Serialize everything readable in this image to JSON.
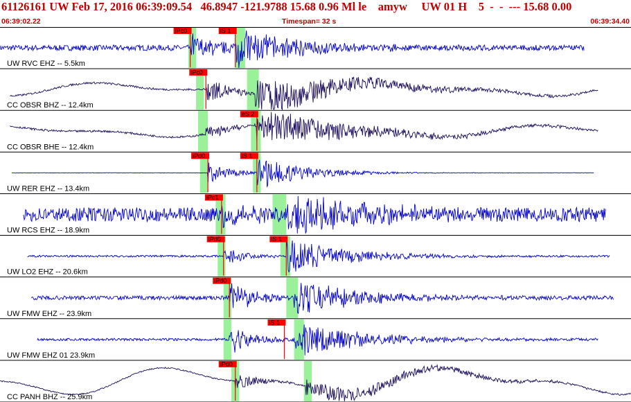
{
  "header": {
    "title": "61126161 UW Feb 17, 2016 06:39:09.54   46.8947 -121.9788 15.68 0.96 Ml le    amyw     UW 01 H    5  -  -  --- 15.68 0.00",
    "start_time": "06:39:02.22",
    "timespan": "Timespan=  32 s",
    "end_time": "06:39:34.40"
  },
  "chart_data": {
    "type": "line",
    "title": "61126161 UW Feb 17, 2016 06:39:09.54   46.8947 -121.9788 15.68 0.96 Ml le    amyw     UW 01 H    5  -  -  --- 15.68 0.00",
    "x_range_s": [
      0,
      32.18
    ],
    "colors": {
      "trace_blue": "#0000cc",
      "trace_dark": "#1a0a5a",
      "pick_red": "#ff0000",
      "window_green": "#88ee88"
    },
    "traces": [
      {
        "label": "UW RVC EHZ -- 5.5km",
        "color": "#0000cc",
        "start": 0.0,
        "end": 29.8,
        "noise": 0.14,
        "lp": 0,
        "onset": 9.7,
        "s": 12.0,
        "ampP": 0.8,
        "ampS": 0.95,
        "decay": 3.0,
        "windows": [
          [
            9.6,
            10.0
          ],
          [
            12.0,
            12.5
          ]
        ],
        "picks": [
          {
            "label": "iPc0",
            "t": 9.7
          },
          {
            "label": "iS 1",
            "t": 12.0
          }
        ]
      },
      {
        "label": "CC OBSR BHZ -- 12.4km",
        "color": "#1a0a5a",
        "start": 0.5,
        "end": 30.5,
        "noise": 0.05,
        "lp": 0.45,
        "onset": 10.5,
        "s": 13.0,
        "ampP": 0.75,
        "ampS": 0.95,
        "decay": 5.0,
        "windows": [
          [
            10.0,
            10.4
          ],
          [
            12.6,
            13.2
          ]
        ],
        "picks": [
          {
            "label": "iPc0",
            "t": 10.5
          }
        ]
      },
      {
        "label": "CC OBSR BHE -- 12.4km",
        "color": "#1a0a5a",
        "start": 0.5,
        "end": 30.5,
        "noise": 0.05,
        "lp": 0.4,
        "onset": 10.5,
        "s": 13.1,
        "ampP": 0.5,
        "ampS": 0.95,
        "decay": 5.0,
        "windows": [
          [
            10.1,
            10.6
          ],
          [
            12.8,
            13.3
          ]
        ],
        "picks": [
          {
            "label": "eS 2",
            "t": 13.1
          }
        ]
      },
      {
        "label": "UW RER EHZ -- 13.4km",
        "color": "#0000cc",
        "start": 0.6,
        "end": 30.3,
        "noise": 0.01,
        "lp": 0,
        "onset": 10.6,
        "s": 13.1,
        "ampP": 0.55,
        "ampS": 0.8,
        "decay": 2.5,
        "windows": [
          [
            10.2,
            10.6
          ],
          [
            12.9,
            13.3
          ]
        ],
        "picks": [
          {
            "label": "iPd0",
            "t": 10.6
          },
          {
            "label": "iS 1",
            "t": 13.1
          }
        ]
      },
      {
        "label": "UW RCS EHZ -- 18.9km",
        "color": "#0000cc",
        "start": 1.2,
        "end": 30.9,
        "noise": 0.35,
        "lp": 0,
        "onset": 11.3,
        "s": 14.6,
        "ampP": 0.8,
        "ampS": 0.95,
        "decay": 4.0,
        "windows": [
          [
            11.0,
            11.5
          ],
          [
            13.9,
            14.6
          ]
        ],
        "picks": [
          {
            "label": "iPc1",
            "t": 11.3
          }
        ]
      },
      {
        "label": "UW LO2 EHZ -- 20.6km",
        "color": "#0000cc",
        "start": 1.4,
        "end": 31.1,
        "noise": 0.05,
        "lp": 0,
        "onset": 11.4,
        "s": 14.6,
        "ampP": 0.45,
        "ampS": 0.95,
        "decay": 3.0,
        "windows": [
          [
            11.1,
            11.5
          ],
          [
            14.3,
            14.8
          ]
        ],
        "picks": [
          {
            "label": "iPd0",
            "t": 11.4
          },
          {
            "label": "iS 1",
            "t": 14.6
          }
        ]
      },
      {
        "label": "UW FMW EHZ -- 23.9km",
        "color": "#0000cc",
        "start": 1.6,
        "end": 31.3,
        "noise": 0.1,
        "lp": 0,
        "onset": 11.7,
        "s": 15.0,
        "ampP": 0.95,
        "ampS": 0.9,
        "decay": 3.5,
        "windows": [
          [
            11.4,
            11.8
          ],
          [
            14.6,
            15.2
          ]
        ],
        "picks": [
          {
            "label": "iPd0",
            "t": 11.7
          }
        ]
      },
      {
        "label": "UW FMW EHZ 01 23.9km",
        "color": "#0000cc",
        "start": 1.9,
        "end": 30.5,
        "noise": 0.06,
        "lp": 0,
        "onset": 11.7,
        "s": 15.0,
        "ampP": 0.75,
        "ampS": 0.9,
        "decay": 3.5,
        "windows": [
          [
            11.4,
            11.8
          ],
          [
            15.0,
            15.5
          ]
        ],
        "picks": [
          {
            "label": "iS 1",
            "t": 14.5
          }
        ]
      },
      {
        "label": "CC PANH BHZ -- 25.9km",
        "color": "#1a0a5a",
        "start": 0.0,
        "end": 32.18,
        "noise": 0.03,
        "lp": 0.9,
        "onset": 12.0,
        "s": 15.6,
        "ampP": 0.5,
        "ampS": 0.5,
        "decay": 6.0,
        "windows": [
          [
            11.8,
            12.2
          ],
          [
            15.5,
            15.9
          ]
        ],
        "picks": [
          {
            "label": "iPd0",
            "t": 12.0
          }
        ]
      }
    ]
  }
}
